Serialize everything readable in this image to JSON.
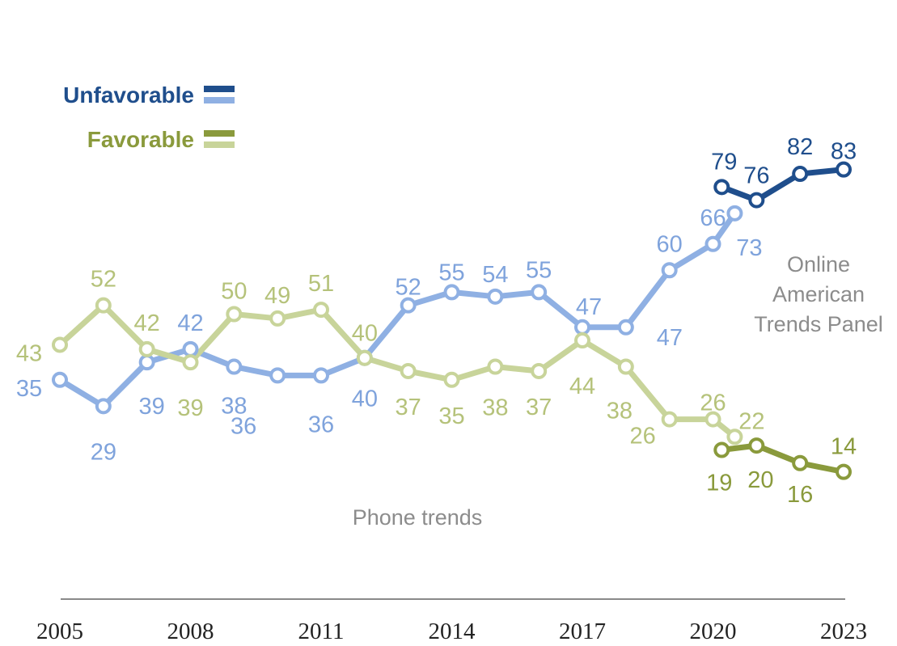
{
  "chart_data": {
    "type": "line",
    "x_ticks": [
      "2005",
      "2008",
      "2011",
      "2014",
      "2017",
      "2020",
      "2023"
    ],
    "xlim": [
      2005,
      2023
    ],
    "ylim": [
      0,
      100
    ],
    "grid": false,
    "legend_position": "top-left",
    "legend": [
      {
        "label": "Unfavorable",
        "dark": "#1f4e8c",
        "light": "#8fb0e3"
      },
      {
        "label": "Favorable",
        "dark": "#8a9a3c",
        "light": "#c8d49a"
      }
    ],
    "annotations": [
      "Online American Trends Panel",
      "Phone trends"
    ],
    "series": [
      {
        "group": "Unfavorable",
        "mode": "Phone trends",
        "color": "#8fb0e3",
        "label_color": "#7fa3dc",
        "x": [
          2005,
          2006,
          2007,
          2008,
          2009,
          2010,
          2011,
          2012,
          2013,
          2014,
          2015,
          2016,
          2017,
          2018,
          2019,
          2020,
          2020.5
        ],
        "values": [
          35,
          29,
          39,
          42,
          38,
          36,
          36,
          40,
          52,
          55,
          54,
          55,
          47,
          47,
          60,
          66,
          73
        ]
      },
      {
        "group": "Favorable",
        "mode": "Phone trends",
        "color": "#c8d49a",
        "label_color": "#b5c27a",
        "x": [
          2005,
          2006,
          2007,
          2008,
          2009,
          2010,
          2011,
          2012,
          2013,
          2014,
          2015,
          2016,
          2017,
          2018,
          2019,
          2020,
          2020.5
        ],
        "values": [
          43,
          52,
          42,
          39,
          50,
          49,
          51,
          40,
          37,
          35,
          38,
          37,
          44,
          38,
          26,
          26,
          22
        ]
      },
      {
        "group": "Unfavorable",
        "mode": "Online American Trends Panel",
        "color": "#1f4e8c",
        "label_color": "#1f4e8c",
        "x": [
          2020.2,
          2021,
          2022,
          2023
        ],
        "values": [
          79,
          76,
          82,
          83
        ]
      },
      {
        "group": "Favorable",
        "mode": "Online American Trends Panel",
        "color": "#8a9a3c",
        "label_color": "#8a9a3c",
        "x": [
          2020.2,
          2021,
          2022,
          2023
        ],
        "values": [
          19,
          20,
          16,
          14
        ]
      }
    ]
  }
}
